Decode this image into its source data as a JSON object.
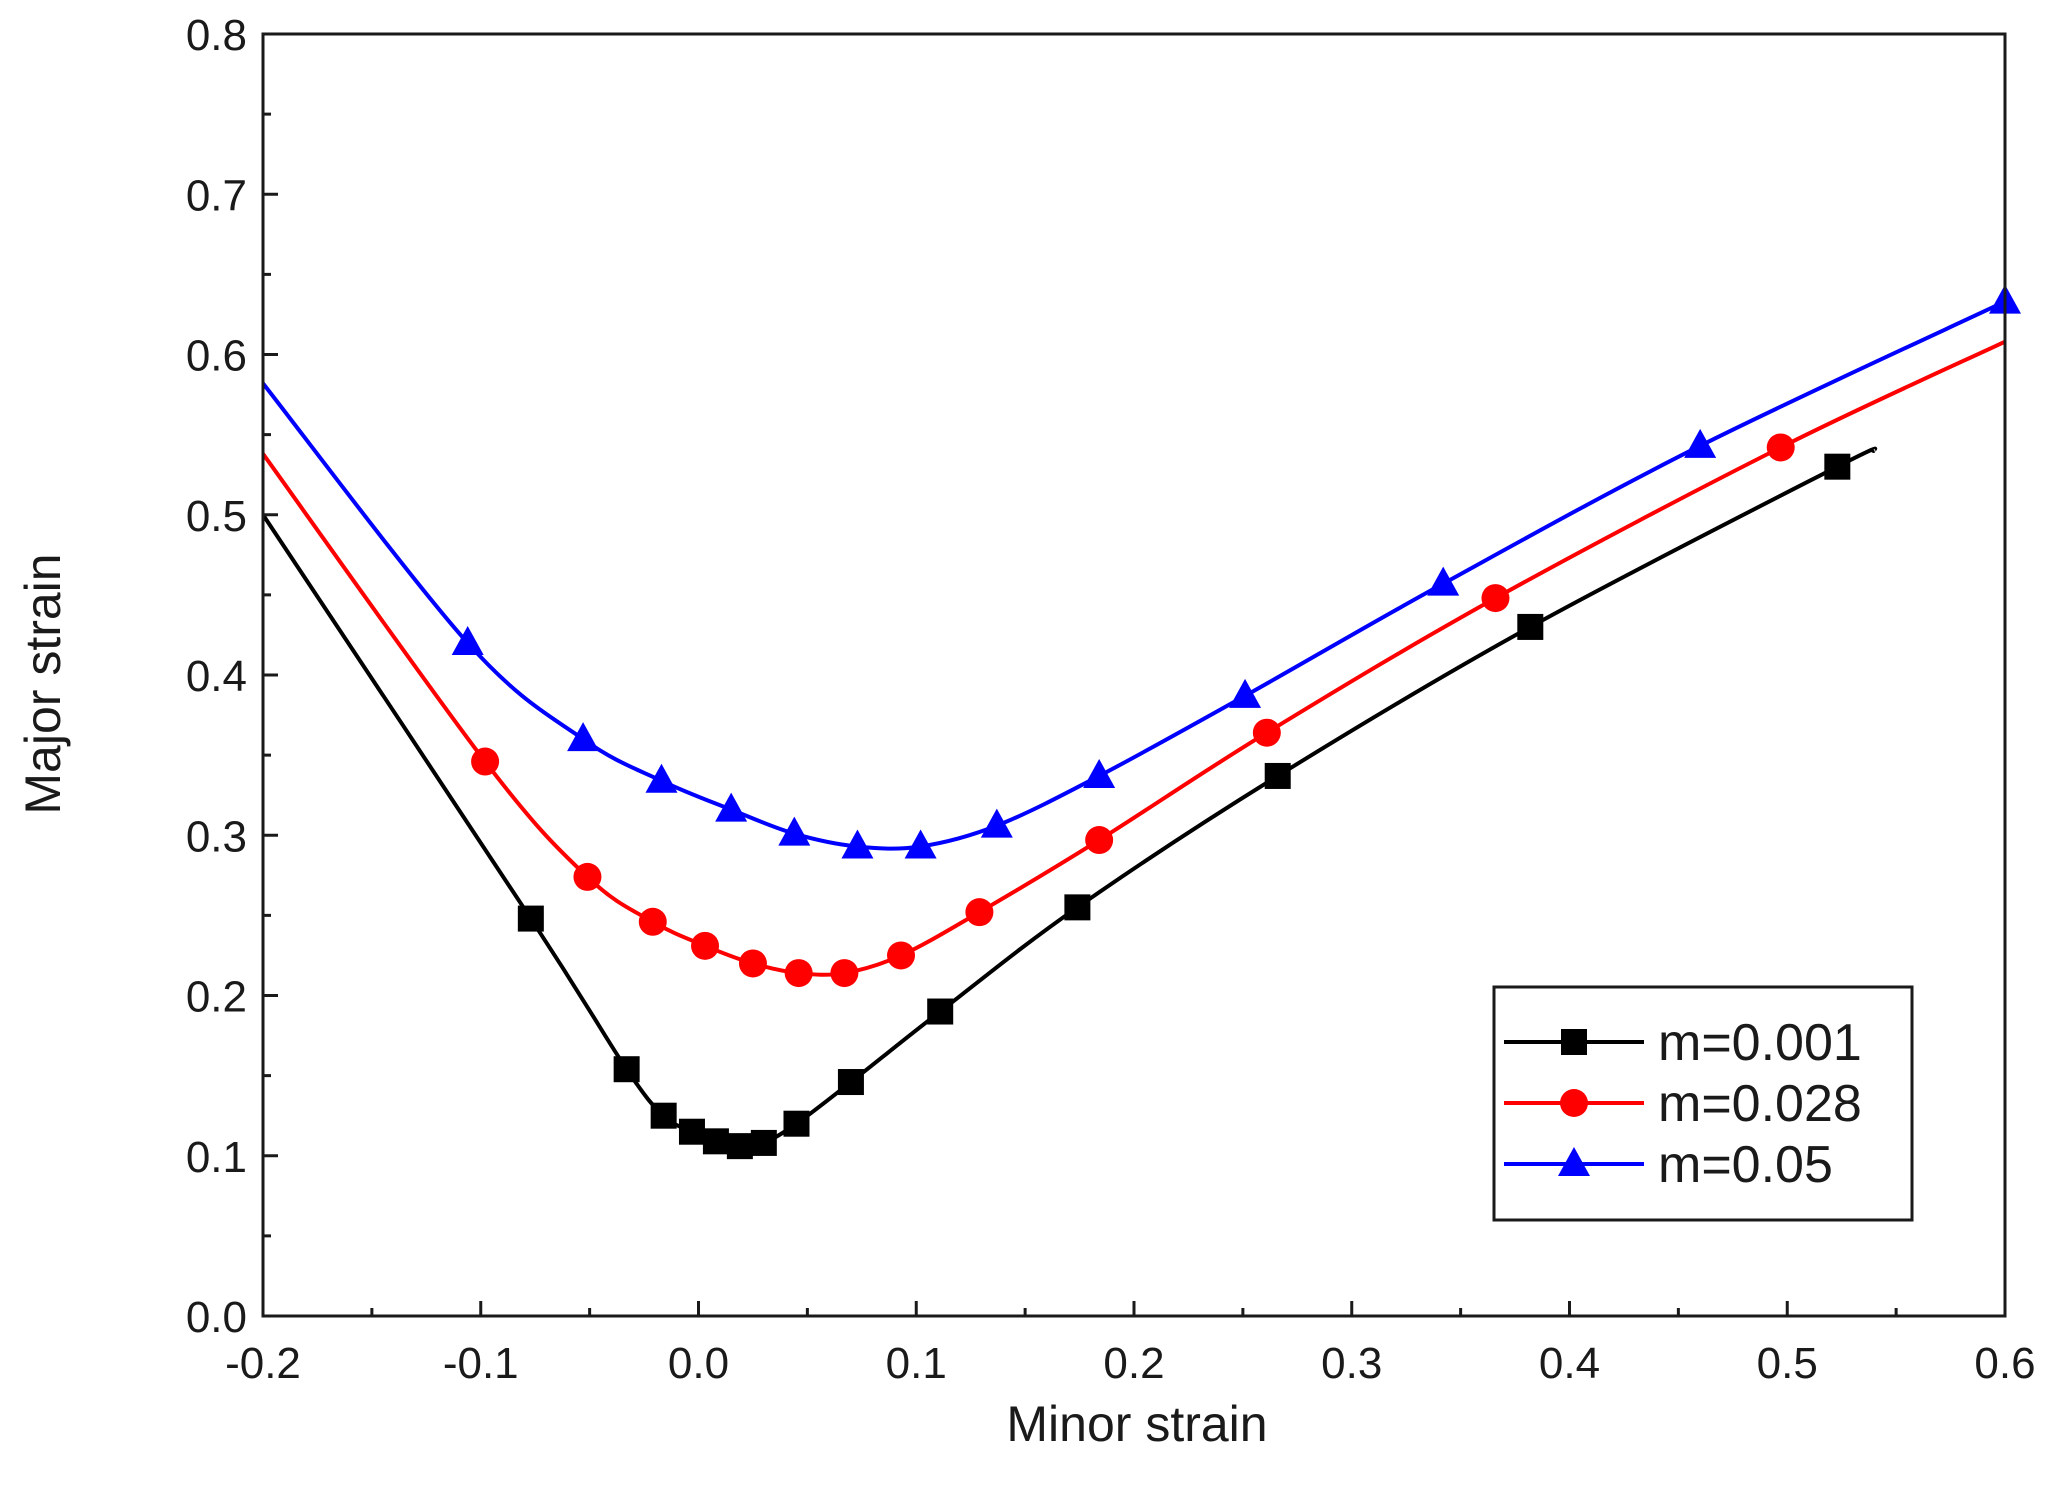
{
  "chart_data": {
    "type": "line",
    "title": "",
    "xlabel": "Minor strain",
    "ylabel": "Major strain",
    "xlim": [
      -0.2,
      0.6
    ],
    "ylim": [
      0.0,
      0.8
    ],
    "xticks": [
      "-0.2",
      "-0.1",
      "0.0",
      "0.1",
      "0.2",
      "0.3",
      "0.4",
      "0.5",
      "0.6"
    ],
    "yticks": [
      "0.0",
      "0.1",
      "0.2",
      "0.3",
      "0.4",
      "0.5",
      "0.6",
      "0.7",
      "0.8"
    ],
    "grid": false,
    "legend_position": "bottom-right",
    "series": [
      {
        "name": "m=0.001",
        "color": "#000000",
        "marker": "square",
        "line": [
          [
            -0.2,
            0.5
          ],
          [
            -0.077,
            0.248
          ],
          [
            -0.033,
            0.154
          ],
          [
            -0.016,
            0.125
          ],
          [
            -0.003,
            0.115
          ],
          [
            0.008,
            0.109
          ],
          [
            0.019,
            0.106
          ],
          [
            0.03,
            0.108
          ],
          [
            0.045,
            0.12
          ],
          [
            0.07,
            0.146
          ],
          [
            0.111,
            0.19
          ],
          [
            0.174,
            0.255
          ],
          [
            0.266,
            0.337
          ],
          [
            0.382,
            0.43
          ],
          [
            0.523,
            0.53
          ],
          [
            0.54,
            0.54
          ]
        ],
        "markers": [
          [
            -0.077,
            0.248
          ],
          [
            -0.033,
            0.154
          ],
          [
            -0.016,
            0.125
          ],
          [
            -0.003,
            0.115
          ],
          [
            0.008,
            0.109
          ],
          [
            0.019,
            0.106
          ],
          [
            0.03,
            0.108
          ],
          [
            0.045,
            0.12
          ],
          [
            0.07,
            0.146
          ],
          [
            0.111,
            0.19
          ],
          [
            0.174,
            0.255
          ],
          [
            0.266,
            0.337
          ],
          [
            0.382,
            0.43
          ],
          [
            0.523,
            0.53
          ]
        ]
      },
      {
        "name": "m=0.028",
        "color": "#ff0000",
        "marker": "circle",
        "line": [
          [
            -0.2,
            0.538
          ],
          [
            -0.098,
            0.346
          ],
          [
            -0.051,
            0.274
          ],
          [
            -0.021,
            0.246
          ],
          [
            0.003,
            0.231
          ],
          [
            0.025,
            0.22
          ],
          [
            0.046,
            0.214
          ],
          [
            0.067,
            0.214
          ],
          [
            0.093,
            0.225
          ],
          [
            0.129,
            0.252
          ],
          [
            0.184,
            0.297
          ],
          [
            0.261,
            0.364
          ],
          [
            0.366,
            0.448
          ],
          [
            0.497,
            0.542
          ],
          [
            0.6,
            0.608
          ]
        ],
        "markers": [
          [
            -0.098,
            0.346
          ],
          [
            -0.051,
            0.274
          ],
          [
            -0.021,
            0.246
          ],
          [
            0.003,
            0.231
          ],
          [
            0.025,
            0.22
          ],
          [
            0.046,
            0.214
          ],
          [
            0.067,
            0.214
          ],
          [
            0.093,
            0.225
          ],
          [
            0.129,
            0.252
          ],
          [
            0.184,
            0.297
          ],
          [
            0.261,
            0.364
          ],
          [
            0.366,
            0.448
          ],
          [
            0.497,
            0.542
          ]
        ]
      },
      {
        "name": "m=0.05",
        "color": "#0000ff",
        "marker": "triangle",
        "line": [
          [
            -0.2,
            0.582
          ],
          [
            -0.106,
            0.42
          ],
          [
            -0.053,
            0.36
          ],
          [
            -0.017,
            0.334
          ],
          [
            0.015,
            0.316
          ],
          [
            0.044,
            0.301
          ],
          [
            0.073,
            0.293
          ],
          [
            0.102,
            0.293
          ],
          [
            0.137,
            0.306
          ],
          [
            0.184,
            0.337
          ],
          [
            0.251,
            0.387
          ],
          [
            0.342,
            0.457
          ],
          [
            0.46,
            0.543
          ],
          [
            0.6,
            0.633
          ]
        ],
        "markers": [
          [
            -0.106,
            0.42
          ],
          [
            -0.053,
            0.36
          ],
          [
            -0.017,
            0.334
          ],
          [
            0.015,
            0.316
          ],
          [
            0.044,
            0.301
          ],
          [
            0.073,
            0.293
          ],
          [
            0.102,
            0.293
          ],
          [
            0.137,
            0.306
          ],
          [
            0.184,
            0.337
          ],
          [
            0.251,
            0.387
          ],
          [
            0.342,
            0.457
          ],
          [
            0.46,
            0.543
          ],
          [
            0.6,
            0.633
          ]
        ]
      }
    ]
  }
}
